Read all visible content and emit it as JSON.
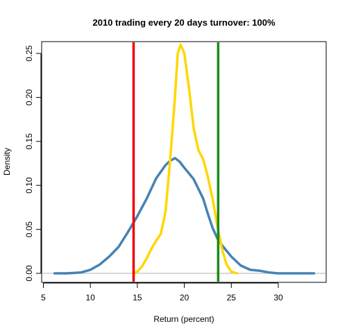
{
  "chart_data": {
    "type": "line",
    "title": "2010  trading every 20 days  turnover: 100%",
    "xlabel": "Return (percent)",
    "ylabel": "Density",
    "xlim": [
      5,
      34
    ],
    "ylim": [
      0,
      0.27
    ],
    "x_ticks": [
      5,
      10,
      15,
      20,
      25,
      30
    ],
    "y_ticks": [
      0.0,
      0.05,
      0.1,
      0.15,
      0.2,
      0.25
    ],
    "x_tick_labels": [
      "5",
      "10",
      "15",
      "20",
      "25",
      "30"
    ],
    "y_tick_labels": [
      "0.00",
      "0.05",
      "0.10",
      "0.15",
      "0.20",
      "0.25"
    ],
    "grid": false,
    "legend": "none",
    "baseline": {
      "y": 0,
      "color": "#b0b0b0"
    },
    "series": [
      {
        "color": "#4682b4",
        "x": [
          6.2,
          7.5,
          9.0,
          10.0,
          11.0,
          12.0,
          13.0,
          14.0,
          15.0,
          16.0,
          17.0,
          18.0,
          18.5,
          19.0,
          19.5,
          20.0,
          21.0,
          22.0,
          22.5,
          23.0,
          23.5,
          24.0,
          25.0,
          26.0,
          27.0,
          28.0,
          29.0,
          30.0,
          31.0,
          32.0,
          33.8
        ],
        "y": [
          0.0,
          0.0,
          0.001,
          0.004,
          0.01,
          0.019,
          0.03,
          0.047,
          0.065,
          0.085,
          0.108,
          0.123,
          0.128,
          0.131,
          0.127,
          0.12,
          0.107,
          0.085,
          0.068,
          0.052,
          0.04,
          0.032,
          0.019,
          0.009,
          0.004,
          0.003,
          0.001,
          0.0,
          0.0,
          0.0,
          0.0
        ]
      },
      {
        "color": "#ffd700",
        "x": [
          14.7,
          15.0,
          15.5,
          16.0,
          16.5,
          17.0,
          17.5,
          18.0,
          18.5,
          19.0,
          19.3,
          19.6,
          20.0,
          20.5,
          21.0,
          21.5,
          22.0,
          22.5,
          23.0,
          23.5,
          24.0,
          24.5,
          25.0,
          25.6
        ],
        "y": [
          0.0,
          0.002,
          0.008,
          0.017,
          0.028,
          0.037,
          0.045,
          0.07,
          0.13,
          0.2,
          0.25,
          0.26,
          0.25,
          0.21,
          0.165,
          0.14,
          0.13,
          0.11,
          0.085,
          0.055,
          0.028,
          0.01,
          0.002,
          0.0
        ]
      }
    ],
    "vertical_lines": [
      {
        "x": 14.6,
        "color": "#ee0000"
      },
      {
        "x": 23.6,
        "color": "#1a8a1a"
      }
    ]
  }
}
